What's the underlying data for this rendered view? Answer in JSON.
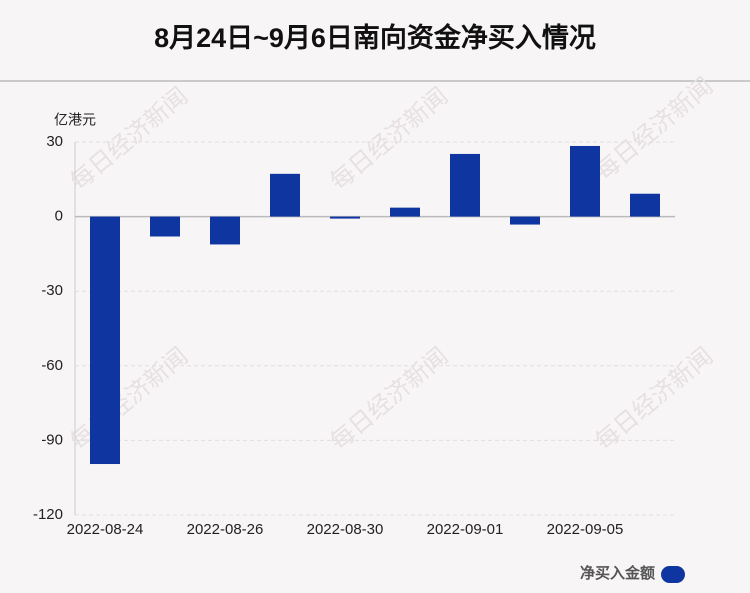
{
  "chart_data": {
    "type": "bar",
    "title": "8月24日~9月6日南向资金净买入情况",
    "y_label": "亿港元",
    "watermark": "每日经济新闻",
    "categories": [
      "2022-08-24",
      null,
      "2022-08-26",
      null,
      "2022-08-30",
      null,
      "2022-09-01",
      null,
      "2022-09-05",
      null
    ],
    "series": [
      {
        "name": "净买入金额",
        "color": "#0f35a0",
        "values": [
          -99.5,
          -8,
          -11.2,
          17.2,
          -0.8,
          3.6,
          25.2,
          -3.2,
          28.4,
          9.2
        ]
      }
    ],
    "ylim": [
      -120,
      30
    ],
    "yticks": [
      -120,
      -90,
      -60,
      -30,
      0,
      30
    ],
    "grid": true
  }
}
